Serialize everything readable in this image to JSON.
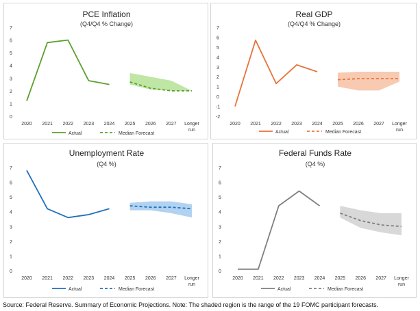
{
  "footnote": "Source: Federal Reserve. Summary of Economic Projections. Note: The shaded region is the range of the 19 FOMC participant forecasts.",
  "chart_data": [
    {
      "type": "line",
      "title": "PCE Inflation",
      "subtitle": "(Q4/Q4 % Change)",
      "color": "#5aa02c",
      "fill": "#b8e39a",
      "categories": [
        "2020",
        "2021",
        "2022",
        "2023",
        "2024",
        "2025",
        "2026",
        "2027",
        "Longer run"
      ],
      "ylim": [
        0,
        7
      ],
      "yticks": [
        0,
        1,
        2,
        3,
        4,
        5,
        6,
        7
      ],
      "series": [
        {
          "name": "Actual",
          "values": [
            1.2,
            5.8,
            6.0,
            2.8,
            2.5,
            null,
            null,
            null,
            null
          ]
        },
        {
          "name": "Median Forecast",
          "values": [
            null,
            null,
            null,
            null,
            null,
            2.7,
            2.2,
            2.0,
            2.0
          ]
        }
      ],
      "range_low": [
        null,
        null,
        null,
        null,
        null,
        2.5,
        2.1,
        2.0,
        2.0
      ],
      "range_high": [
        null,
        null,
        null,
        null,
        null,
        3.4,
        3.1,
        2.8,
        2.0
      ]
    },
    {
      "type": "line",
      "title": "Real GDP",
      "subtitle": "(Q4/Q4 % Change)",
      "color": "#e8733a",
      "fill": "#f6c4a8",
      "categories": [
        "2020",
        "2021",
        "2022",
        "2023",
        "2024",
        "2025",
        "2026",
        "2027",
        "Longer run"
      ],
      "ylim": [
        -2,
        7
      ],
      "yticks": [
        -2,
        -1,
        0,
        1,
        2,
        3,
        4,
        5,
        6,
        7
      ],
      "series": [
        {
          "name": "Actual",
          "values": [
            -1.0,
            5.7,
            1.3,
            3.2,
            2.5,
            null,
            null,
            null,
            null
          ]
        },
        {
          "name": "Median Forecast",
          "values": [
            null,
            null,
            null,
            null,
            null,
            1.7,
            1.8,
            1.8,
            1.8
          ]
        }
      ],
      "range_low": [
        null,
        null,
        null,
        null,
        null,
        1.0,
        0.6,
        0.6,
        1.5
      ],
      "range_high": [
        null,
        null,
        null,
        null,
        null,
        2.4,
        2.5,
        2.5,
        2.5
      ]
    },
    {
      "type": "line",
      "title": "Unemployment Rate",
      "subtitle": "(Q4 %)",
      "color": "#1f6fbd",
      "fill": "#a9cdf0",
      "categories": [
        "2020",
        "2021",
        "2022",
        "2023",
        "2024",
        "2025",
        "2026",
        "2027",
        "Longer run"
      ],
      "ylim": [
        0,
        7
      ],
      "yticks": [
        0,
        1,
        2,
        3,
        4,
        5,
        6,
        7
      ],
      "series": [
        {
          "name": "Actual",
          "values": [
            6.8,
            4.2,
            3.6,
            3.8,
            4.2,
            null,
            null,
            null,
            null
          ]
        },
        {
          "name": "Median Forecast",
          "values": [
            null,
            null,
            null,
            null,
            null,
            4.4,
            4.3,
            4.3,
            4.2
          ]
        }
      ],
      "range_low": [
        null,
        null,
        null,
        null,
        null,
        4.1,
        4.1,
        3.9,
        3.6
      ],
      "range_high": [
        null,
        null,
        null,
        null,
        null,
        4.6,
        4.7,
        4.7,
        4.5
      ]
    },
    {
      "type": "line",
      "title": "Federal Funds Rate",
      "subtitle": "(Q4 %)",
      "color": "#7f7f7f",
      "fill": "#d4d4d4",
      "categories": [
        "2020",
        "2021",
        "2022",
        "2023",
        "2024",
        "2025",
        "2026",
        "2027",
        "Longer run"
      ],
      "ylim": [
        0,
        7
      ],
      "yticks": [
        0,
        1,
        2,
        3,
        4,
        5,
        6,
        7
      ],
      "series": [
        {
          "name": "Actual",
          "values": [
            0.1,
            0.1,
            4.4,
            5.4,
            4.4,
            null,
            null,
            null,
            null
          ]
        },
        {
          "name": "Median Forecast",
          "values": [
            null,
            null,
            null,
            null,
            null,
            3.9,
            3.4,
            3.1,
            3.0
          ]
        }
      ],
      "range_low": [
        null,
        null,
        null,
        null,
        null,
        3.6,
        2.9,
        2.6,
        2.4
      ],
      "range_high": [
        null,
        null,
        null,
        null,
        null,
        4.4,
        4.1,
        3.9,
        3.9
      ]
    }
  ]
}
